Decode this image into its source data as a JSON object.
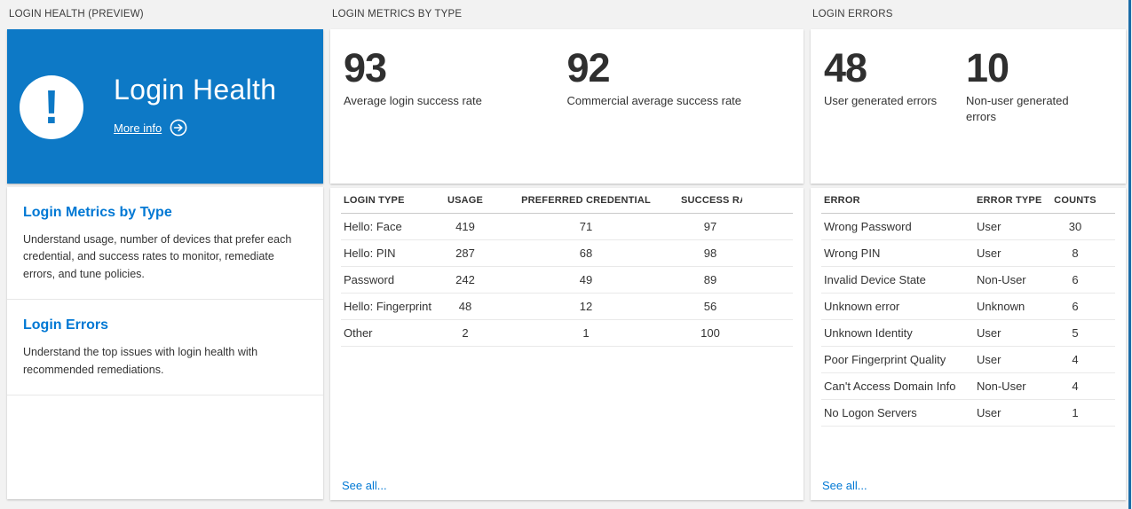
{
  "colors": {
    "accent": "#0078d4",
    "tile_blue": "#0d79c6",
    "edge_blue": "#1b6da8"
  },
  "columns": {
    "health": {
      "header": "LOGIN HEALTH (PREVIEW)",
      "tile": {
        "title": "Login Health",
        "more_info_label": "More info"
      },
      "sections": [
        {
          "title": "Login Metrics by Type",
          "description": "Understand usage, number of devices that prefer each credential, and success rates to monitor, remediate errors, and tune policies."
        },
        {
          "title": "Login Errors",
          "description": "Understand the top issues with login health with recommended remediations."
        }
      ]
    },
    "metrics": {
      "header": "LOGIN METRICS BY TYPE",
      "stats": [
        {
          "value": "93",
          "label": "Average login success rate"
        },
        {
          "value": "92",
          "label": "Commercial average success rate"
        }
      ],
      "table": {
        "columns": [
          "LOGIN TYPE",
          "USAGE",
          "PREFERRED CREDENTIAL",
          "SUCCESS RATE"
        ],
        "rows": [
          [
            "Hello: Face",
            "419",
            "71",
            "97"
          ],
          [
            "Hello: PIN",
            "287",
            "68",
            "98"
          ],
          [
            "Password",
            "242",
            "49",
            "89"
          ],
          [
            "Hello: Fingerprint",
            "48",
            "12",
            "56"
          ],
          [
            "Other",
            "2",
            "1",
            "100"
          ]
        ]
      },
      "see_all_label": "See all..."
    },
    "errors": {
      "header": "LOGIN ERRORS",
      "stats": [
        {
          "value": "48",
          "label": "User generated errors"
        },
        {
          "value": "10",
          "label": "Non-user generated errors"
        }
      ],
      "table": {
        "columns": [
          "ERROR",
          "ERROR TYPE",
          "COUNTS"
        ],
        "rows": [
          [
            "Wrong Password",
            "User",
            "30"
          ],
          [
            "Wrong PIN",
            "User",
            "8"
          ],
          [
            "Invalid Device State",
            "Non-User",
            "6"
          ],
          [
            "Unknown error",
            "Unknown",
            "6"
          ],
          [
            "Unknown Identity",
            "User",
            "5"
          ],
          [
            "Poor Fingerprint Quality",
            "User",
            "4"
          ],
          [
            "Can't Access Domain Info",
            "Non-User",
            "4"
          ],
          [
            "No Logon Servers",
            "User",
            "1"
          ]
        ]
      },
      "see_all_label": "See all..."
    }
  }
}
